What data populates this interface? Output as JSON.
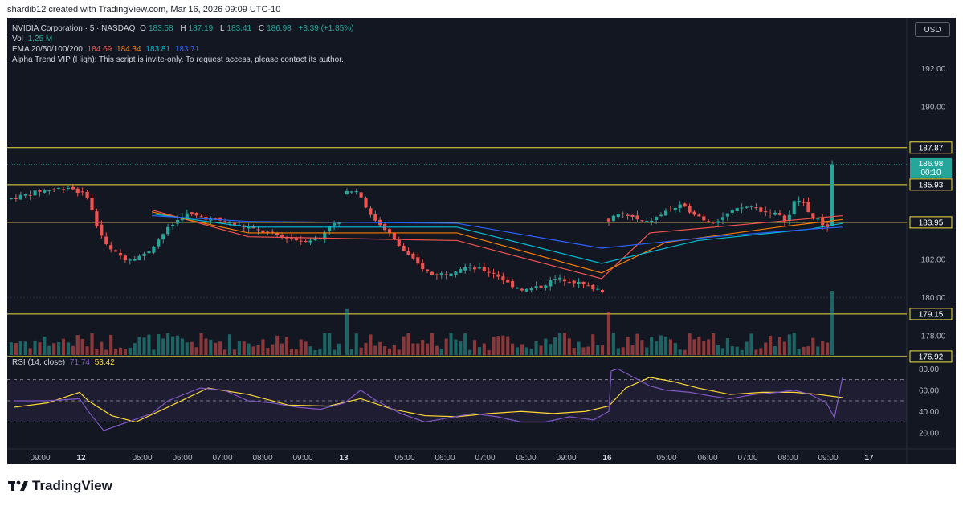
{
  "header": {
    "attribution": "shardib12 created with TradingView.com, Mar 16, 2026 09:09 UTC-10"
  },
  "legend": {
    "symbol": "NVIDIA Corporation · 5 · NASDAQ",
    "o_label": "O",
    "o_value": "183.58",
    "h_label": "H",
    "h_value": "187.19",
    "l_label": "L",
    "l_value": "183.41",
    "c_label": "C",
    "c_value": "186.98",
    "change": "+3.39 (+1.85%)",
    "vol_label": "Vol",
    "vol_value": "1.25 M",
    "ema_label": "EMA 20/50/100/200",
    "ema20": "184.69",
    "ema50": "184.34",
    "ema100": "183.81",
    "ema200": "183.71",
    "script_note": "Alpha Trend VIP (High): This script is invite-only. To request access, please contact its author."
  },
  "currency_button": "USD",
  "rsi": {
    "label": "RSI (14, close)",
    "value1": "71.74",
    "value2": "53.42"
  },
  "branding": {
    "logo_text": "TradingView"
  },
  "colors": {
    "background": "#131722",
    "up": "#26a69a",
    "down": "#ef5350",
    "ema20": "#ef5350",
    "ema50": "#f57c00",
    "ema100": "#00bcd4",
    "ema200": "#2962ff",
    "levels": "#f0e040",
    "rsi": "#7e57c2",
    "rsi_ma": "#fdd835"
  },
  "chart_data": [
    {
      "type": "candlestick",
      "title": "NVIDIA Corporation · 5 · NASDAQ",
      "ylim": [
        177.0,
        193.5
      ],
      "y_ticks": [
        "178.00",
        "180.00",
        "182.00",
        "190.00",
        "192.00"
      ],
      "current_price": {
        "value": "186.98",
        "countdown": "00:10"
      },
      "horizontal_levels": [
        {
          "value": 187.87,
          "label": "187.87"
        },
        {
          "value": 185.93,
          "label": "185.93"
        },
        {
          "value": 183.95,
          "label": "183.95"
        },
        {
          "value": 179.15,
          "label": "179.15"
        },
        {
          "value": 176.92,
          "label": "176.92"
        }
      ],
      "x_labels": [
        "09:00",
        "12",
        "05:00",
        "06:00",
        "07:00",
        "08:00",
        "09:00",
        "13",
        "05:00",
        "06:00",
        "07:00",
        "08:00",
        "09:00",
        "16",
        "05:00",
        "06:00",
        "07:00",
        "08:00",
        "09:00",
        "17"
      ],
      "price_path": {
        "day12": [
          [
            0,
            185.2
          ],
          [
            18,
            185.6
          ],
          [
            36,
            185.8
          ],
          [
            48,
            185.3
          ],
          [
            52,
            184.0
          ],
          [
            60,
            182.6
          ],
          [
            72,
            182.0
          ],
          [
            84,
            182.3
          ],
          [
            96,
            183.5
          ],
          [
            108,
            184.4
          ],
          [
            120,
            184.2
          ],
          [
            132,
            184.0
          ],
          [
            150,
            183.6
          ],
          [
            168,
            183.2
          ],
          [
            180,
            183.0
          ],
          [
            192,
            183.1
          ],
          [
            198,
            183.8
          ],
          [
            204,
            183.9
          ]
        ],
        "day13": [
          [
            0,
            185.5
          ],
          [
            6,
            185.7
          ],
          [
            12,
            185.2
          ],
          [
            18,
            184.3
          ],
          [
            30,
            183.6
          ],
          [
            42,
            182.6
          ],
          [
            54,
            181.8
          ],
          [
            66,
            181.2
          ],
          [
            78,
            181.3
          ],
          [
            90,
            181.6
          ],
          [
            102,
            181.5
          ],
          [
            114,
            181.3
          ],
          [
            126,
            180.7
          ],
          [
            138,
            180.4
          ],
          [
            150,
            180.6
          ],
          [
            162,
            181.0
          ],
          [
            174,
            180.9
          ],
          [
            186,
            180.6
          ],
          [
            198,
            180.4
          ]
        ],
        "day16": [
          [
            0,
            184.1
          ],
          [
            12,
            184.4
          ],
          [
            24,
            184.2
          ],
          [
            36,
            183.9
          ],
          [
            48,
            184.2
          ],
          [
            60,
            184.6
          ],
          [
            72,
            184.8
          ],
          [
            84,
            184.5
          ],
          [
            96,
            184.1
          ],
          [
            108,
            184.0
          ],
          [
            120,
            184.4
          ],
          [
            132,
            184.7
          ],
          [
            144,
            184.8
          ],
          [
            156,
            184.5
          ],
          [
            168,
            184.4
          ],
          [
            180,
            184.0
          ],
          [
            186,
            185.0
          ],
          [
            192,
            185.1
          ],
          [
            198,
            184.9
          ],
          [
            204,
            184.2
          ],
          [
            210,
            184.1
          ],
          [
            216,
            183.8
          ],
          [
            224,
            183.7
          ],
          [
            225,
            186.98
          ]
        ]
      },
      "ema_path": {
        "ema20": [
          [
            180.0,
            184.6
          ],
          [
            300.0,
            183.2
          ],
          [
            560.0,
            183.0
          ],
          [
            740.0,
            181.0
          ],
          [
            800.0,
            183.4
          ],
          [
            960.0,
            184.0
          ],
          [
            1040.0,
            184.3
          ]
        ],
        "ema50": [
          [
            180.0,
            184.5
          ],
          [
            300.0,
            183.4
          ],
          [
            560.0,
            183.4
          ],
          [
            740.0,
            181.3
          ],
          [
            820.0,
            182.9
          ],
          [
            960.0,
            183.7
          ],
          [
            1040.0,
            184.1
          ]
        ],
        "ema100": [
          [
            180.0,
            184.4
          ],
          [
            300.0,
            183.7
          ],
          [
            560.0,
            183.7
          ],
          [
            740.0,
            181.8
          ],
          [
            860.0,
            183.0
          ],
          [
            1000.0,
            183.6
          ],
          [
            1040.0,
            183.9
          ]
        ],
        "ema200": [
          [
            180.0,
            184.3
          ],
          [
            300.0,
            184.0
          ],
          [
            560.0,
            183.9
          ],
          [
            740.0,
            182.6
          ],
          [
            880.0,
            183.2
          ],
          [
            1000.0,
            183.6
          ],
          [
            1040.0,
            183.7
          ]
        ]
      }
    },
    {
      "type": "line",
      "title": "RSI (14, close)",
      "ylim": [
        10,
        90
      ],
      "y_ticks": [
        "20.00",
        "40.00",
        "60.00",
        "80.00"
      ],
      "bands": [
        70,
        50,
        30
      ],
      "rsi_path": [
        [
          9,
          50
        ],
        [
          50,
          50
        ],
        [
          90,
          52
        ],
        [
          101,
          40
        ],
        [
          120,
          22
        ],
        [
          150,
          30
        ],
        [
          180,
          38
        ],
        [
          200,
          50
        ],
        [
          240,
          62
        ],
        [
          270,
          60
        ],
        [
          300,
          50
        ],
        [
          330,
          48
        ],
        [
          360,
          44
        ],
        [
          390,
          42
        ],
        [
          420,
          48
        ],
        [
          440,
          60
        ],
        [
          460,
          50
        ],
        [
          490,
          38
        ],
        [
          520,
          30
        ],
        [
          550,
          34
        ],
        [
          580,
          38
        ],
        [
          610,
          35
        ],
        [
          640,
          30
        ],
        [
          670,
          30
        ],
        [
          700,
          35
        ],
        [
          730,
          32
        ],
        [
          749,
          40
        ],
        [
          752,
          78
        ],
        [
          760,
          80
        ],
        [
          780,
          72
        ],
        [
          800,
          64
        ],
        [
          820,
          60
        ],
        [
          850,
          58
        ],
        [
          880,
          54
        ],
        [
          900,
          52
        ],
        [
          930,
          56
        ],
        [
          960,
          58
        ],
        [
          980,
          60
        ],
        [
          1000,
          56
        ],
        [
          1020,
          48
        ],
        [
          1030,
          34
        ],
        [
          1040,
          72
        ]
      ],
      "ma_path": [
        [
          9,
          44
        ],
        [
          50,
          48
        ],
        [
          90,
          58
        ],
        [
          101,
          50
        ],
        [
          130,
          36
        ],
        [
          160,
          30
        ],
        [
          200,
          44
        ],
        [
          250,
          62
        ],
        [
          300,
          56
        ],
        [
          350,
          46
        ],
        [
          400,
          45
        ],
        [
          440,
          52
        ],
        [
          480,
          42
        ],
        [
          520,
          36
        ],
        [
          560,
          35
        ],
        [
          600,
          38
        ],
        [
          640,
          40
        ],
        [
          680,
          38
        ],
        [
          720,
          40
        ],
        [
          749,
          45
        ],
        [
          770,
          62
        ],
        [
          800,
          72
        ],
        [
          830,
          68
        ],
        [
          860,
          62
        ],
        [
          900,
          56
        ],
        [
          940,
          58
        ],
        [
          980,
          58
        ],
        [
          1010,
          56
        ],
        [
          1040,
          53
        ]
      ]
    }
  ]
}
